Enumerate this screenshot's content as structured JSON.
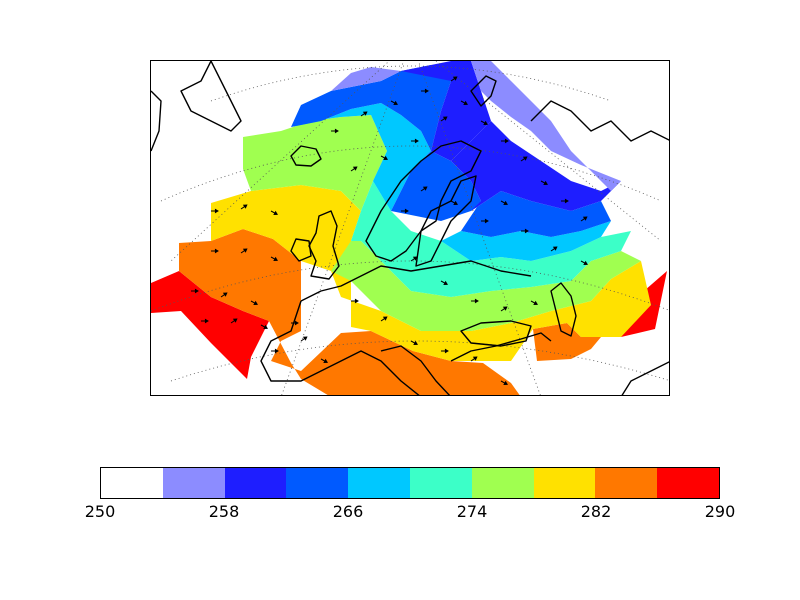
{
  "colorbar": {
    "levels": [
      250,
      254,
      258,
      262,
      266,
      270,
      274,
      278,
      282,
      286,
      290
    ],
    "colors": [
      "#ffffff",
      "#8c8cff",
      "#1e1eff",
      "#005aff",
      "#00c8ff",
      "#3cffc8",
      "#a0ff50",
      "#ffe100",
      "#ff7800",
      "#ff0000"
    ],
    "tick_labels": [
      "250",
      "258",
      "266",
      "274",
      "282",
      "290"
    ],
    "tick_values": [
      250,
      258,
      266,
      274,
      282,
      290
    ]
  },
  "map": {
    "projection": "polar stereographic (Europe)",
    "field": "temperature",
    "vectors": "wind arrows",
    "graticule": "dotted",
    "coastline_color": "#000000"
  }
}
